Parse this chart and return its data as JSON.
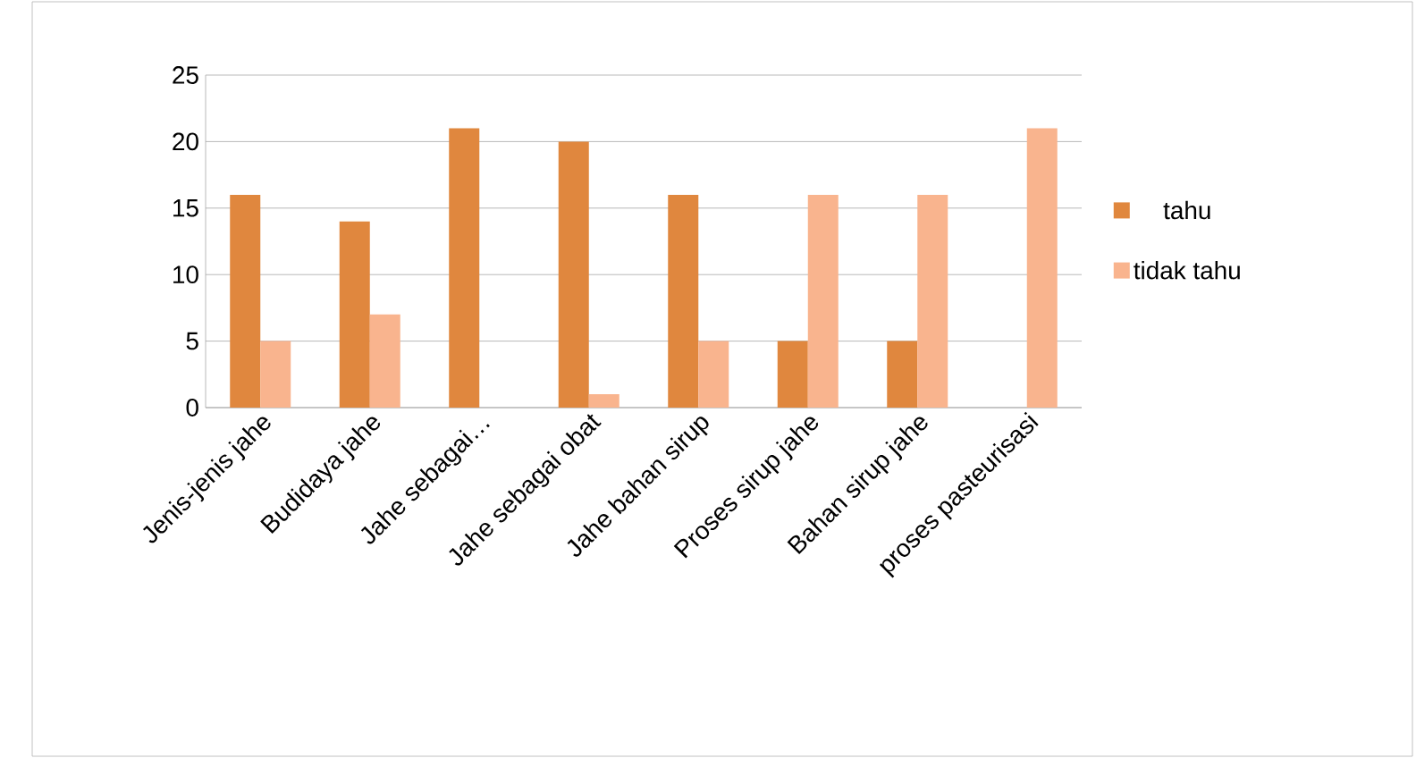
{
  "chart_data": {
    "type": "bar",
    "categories": [
      "Jenis-jenis jahe",
      "Budidaya jahe",
      "Jahe sebagai…",
      "Jahe sebagai obat",
      "Jahe bahan sirup",
      "Proses  sirup jahe",
      "Bahan sirup jahe",
      "proses pasteurisasi"
    ],
    "series": [
      {
        "name": "tahu",
        "color": "#e0873e",
        "values": [
          16,
          14,
          21,
          20,
          16,
          5,
          5,
          0
        ]
      },
      {
        "name": "tidak tahu",
        "color": "#f9b48e",
        "values": [
          5,
          7,
          0,
          1,
          5,
          16,
          16,
          21
        ]
      }
    ],
    "ylim": [
      0,
      25
    ],
    "yticks": [
      0,
      5,
      10,
      15,
      20,
      25
    ],
    "grid": "y",
    "legend": "right"
  }
}
